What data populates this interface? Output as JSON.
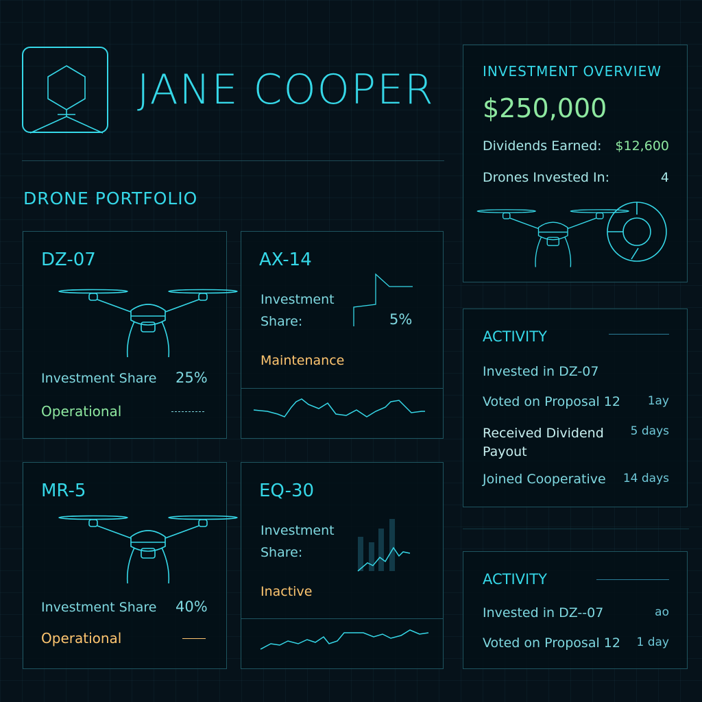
{
  "profile": {
    "name": "JANE COOPER",
    "avatar_icon": "hexagon-avatar-icon"
  },
  "portfolio": {
    "title": "DRONE PORTFOLIO",
    "drones": [
      {
        "id": "DZ-07",
        "share_label": "Investment Share",
        "share": "25%",
        "status": "Operational",
        "status_color": "#8ee8a0"
      },
      {
        "id": "AX-14",
        "share_label_1": "Investment",
        "share_label_2": "Share:",
        "share": "5%",
        "status": "Maintenance",
        "status_color": "#ffc670"
      },
      {
        "id": "MR-5",
        "share_label": "Investment Share",
        "share": "40%",
        "status": "Operational",
        "status_color": "#ffc670"
      },
      {
        "id": "EQ-30",
        "share_label_1": "Investment",
        "share_label_2": "Share:",
        "status": "Inactive",
        "status_color": "#ffc670"
      }
    ]
  },
  "overview": {
    "title": "INVESTMENT OVERVIEW",
    "total": "$250,000",
    "dividends_label": "Dividends Earned:",
    "dividends": "$12,600",
    "drones_label": "Drones Invested In:",
    "drones": "4"
  },
  "activity": {
    "title": "ACTIVITY",
    "items": [
      {
        "text": "Invested in DZ-07",
        "time": ""
      },
      {
        "text": "Voted on Proposal 12",
        "time": "1ay"
      },
      {
        "text": "Received Dividend Payout",
        "time": "5 days"
      },
      {
        "text": "Joined Cooperative",
        "time": "14 days"
      }
    ]
  },
  "activity2": {
    "title": "ACTIVITY",
    "items": [
      {
        "text": "Invested in DZ--07",
        "time": "ao"
      },
      {
        "text": "Voted on Proposal 12",
        "time": "1 day"
      }
    ]
  },
  "colors": {
    "accent": "#36d8e8",
    "green": "#8ee8a0",
    "orange": "#ffc670",
    "bg": "#06121a"
  }
}
